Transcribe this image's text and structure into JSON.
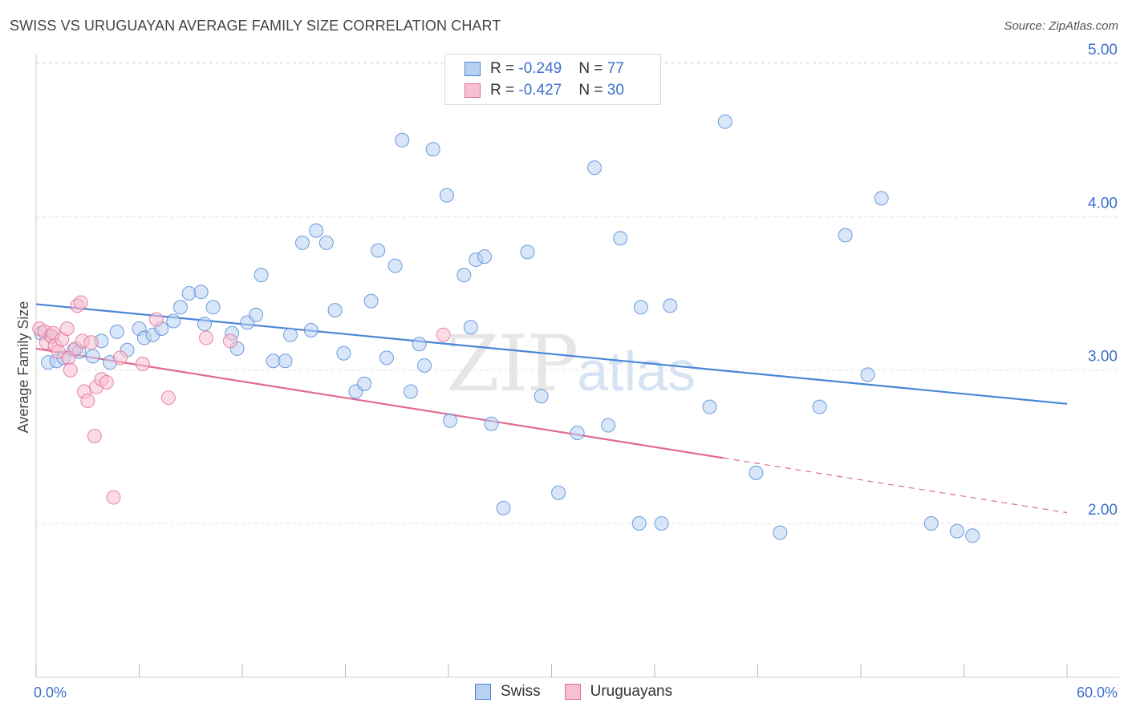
{
  "title": "SWISS VS URUGUAYAN AVERAGE FAMILY SIZE CORRELATION CHART",
  "source": "Source: ZipAtlas.com",
  "watermark": {
    "zip": "ZIP",
    "atlas": "atlas"
  },
  "legend": {
    "swiss": {
      "r_label": "R = ",
      "r_value": "-0.249",
      "n_label": "N = ",
      "n_value": "77"
    },
    "uruguayans": {
      "r_label": "R = ",
      "r_value": "-0.427",
      "n_label": "N = ",
      "n_value": "30"
    }
  },
  "colors": {
    "swiss": "#4a86d8",
    "swiss_fill": "#b9d1f1",
    "uruguayans": "#e06a93",
    "uruguayans_fill": "#f7c0d2",
    "tick": "#3d6fcc"
  },
  "chart_data": {
    "type": "scatter",
    "title": "SWISS VS URUGUAYAN AVERAGE FAMILY SIZE CORRELATION CHART",
    "xlabel": "",
    "ylabel": "Average Family Size",
    "xlim": [
      0,
      60
    ],
    "ylim": [
      1.0,
      5.15
    ],
    "x_tick_labels": [
      "0.0%",
      "60.0%"
    ],
    "y_ticks": [
      2.0,
      3.0,
      4.0,
      5.0
    ],
    "y_tick_labels": [
      "2.00",
      "3.00",
      "4.00",
      "5.00"
    ],
    "legend_position": "bottom-center",
    "series": [
      {
        "name": "Swiss",
        "points": [
          [
            0.7,
            3.05
          ],
          [
            1.2,
            3.06
          ],
          [
            1.6,
            3.08
          ],
          [
            2.2,
            3.13
          ],
          [
            2.5,
            3.12
          ],
          [
            3.3,
            3.09
          ],
          [
            3.8,
            3.19
          ],
          [
            4.3,
            3.05
          ],
          [
            4.7,
            3.25
          ],
          [
            5.3,
            3.13
          ],
          [
            6.0,
            3.27
          ],
          [
            6.3,
            3.21
          ],
          [
            6.8,
            3.23
          ],
          [
            7.3,
            3.27
          ],
          [
            8.0,
            3.32
          ],
          [
            8.4,
            3.41
          ],
          [
            8.9,
            3.5
          ],
          [
            9.6,
            3.51
          ],
          [
            9.8,
            3.3
          ],
          [
            10.3,
            3.41
          ],
          [
            11.4,
            3.24
          ],
          [
            11.7,
            3.14
          ],
          [
            12.3,
            3.31
          ],
          [
            12.8,
            3.36
          ],
          [
            13.1,
            3.62
          ],
          [
            13.8,
            3.06
          ],
          [
            14.5,
            3.06
          ],
          [
            14.8,
            3.23
          ],
          [
            15.5,
            3.83
          ],
          [
            16.0,
            3.26
          ],
          [
            16.3,
            3.91
          ],
          [
            16.9,
            3.83
          ],
          [
            17.4,
            3.39
          ],
          [
            17.9,
            3.11
          ],
          [
            18.6,
            2.86
          ],
          [
            19.1,
            2.91
          ],
          [
            19.5,
            3.45
          ],
          [
            19.9,
            3.78
          ],
          [
            20.4,
            3.08
          ],
          [
            20.9,
            3.68
          ],
          [
            21.3,
            4.5
          ],
          [
            21.8,
            2.86
          ],
          [
            22.3,
            3.17
          ],
          [
            22.6,
            3.03
          ],
          [
            23.1,
            4.44
          ],
          [
            23.9,
            4.14
          ],
          [
            24.1,
            2.67
          ],
          [
            24.9,
            3.62
          ],
          [
            25.3,
            3.28
          ],
          [
            25.6,
            3.72
          ],
          [
            26.1,
            3.74
          ],
          [
            26.5,
            2.65
          ],
          [
            27.2,
            2.1
          ],
          [
            28.6,
            3.77
          ],
          [
            29.4,
            2.83
          ],
          [
            30.4,
            2.2
          ],
          [
            31.5,
            2.59
          ],
          [
            32.5,
            4.32
          ],
          [
            33.3,
            2.64
          ],
          [
            34.0,
            3.86
          ],
          [
            35.1,
            2.0
          ],
          [
            35.2,
            3.41
          ],
          [
            36.4,
            2.0
          ],
          [
            36.9,
            3.42
          ],
          [
            39.2,
            2.76
          ],
          [
            40.1,
            4.62
          ],
          [
            41.9,
            2.33
          ],
          [
            43.3,
            1.94
          ],
          [
            45.6,
            2.76
          ],
          [
            47.1,
            3.88
          ],
          [
            48.4,
            2.97
          ],
          [
            49.2,
            4.12
          ],
          [
            52.1,
            2.0
          ],
          [
            53.6,
            1.95
          ],
          [
            54.5,
            1.92
          ],
          [
            0.3,
            3.24
          ],
          [
            0.9,
            3.22
          ]
        ],
        "trendline": {
          "x": [
            0,
            60
          ],
          "y": [
            3.43,
            2.78
          ]
        }
      },
      {
        "name": "Uruguayans",
        "points": [
          [
            0.2,
            3.27
          ],
          [
            0.5,
            3.25
          ],
          [
            0.6,
            3.18
          ],
          [
            0.9,
            3.22
          ],
          [
            1.0,
            3.24
          ],
          [
            1.1,
            3.16
          ],
          [
            1.3,
            3.12
          ],
          [
            1.5,
            3.2
          ],
          [
            1.8,
            3.27
          ],
          [
            1.9,
            3.08
          ],
          [
            2.0,
            3.0
          ],
          [
            2.3,
            3.14
          ],
          [
            2.4,
            3.42
          ],
          [
            2.6,
            3.44
          ],
          [
            2.7,
            3.19
          ],
          [
            2.8,
            2.86
          ],
          [
            3.0,
            2.8
          ],
          [
            3.2,
            3.18
          ],
          [
            3.4,
            2.57
          ],
          [
            3.5,
            2.89
          ],
          [
            3.8,
            2.94
          ],
          [
            4.1,
            2.92
          ],
          [
            4.5,
            2.17
          ],
          [
            4.9,
            3.08
          ],
          [
            6.2,
            3.04
          ],
          [
            7.0,
            3.33
          ],
          [
            7.7,
            2.82
          ],
          [
            9.9,
            3.21
          ],
          [
            11.3,
            3.19
          ],
          [
            23.7,
            3.23
          ]
        ],
        "trendline": {
          "x": [
            0,
            60
          ],
          "y": [
            3.14,
            2.07
          ],
          "solid_until_x": 40.0
        }
      }
    ]
  }
}
